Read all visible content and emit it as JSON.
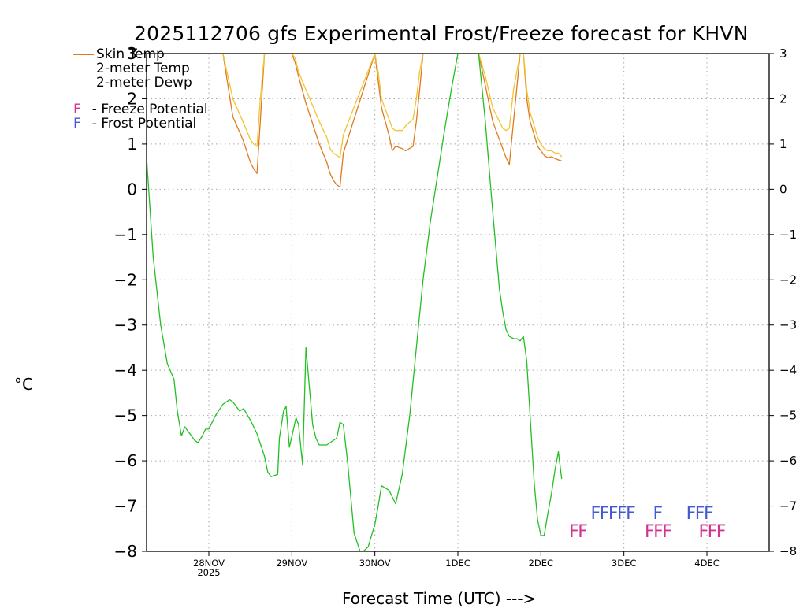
{
  "title": "2025112706 gfs Experimental Frost/Freeze forecast for KHVN",
  "units_label": "°C",
  "xlabel": "Forecast Time (UTC) --->",
  "legend": {
    "skin": "Skin Temp",
    "temp2m": "2-meter Temp",
    "dewp2m": "2-meter Dewp",
    "freeze_letter": "F",
    "freeze_text": "- Freeze Potential",
    "frost_letter": "F",
    "frost_text": "- Frost Potential"
  },
  "colors": {
    "skin": "#e07a1e",
    "temp2m": "#f2c431",
    "dewp2m": "#22c022",
    "freeze": "#d2338f",
    "frost": "#4457d4",
    "grid": "#a8a8a8"
  },
  "chart_data": {
    "type": "line",
    "title": "2025112706 gfs Experimental Frost/Freeze forecast for KHVN",
    "xlabel": "Forecast Time (UTC) --->",
    "ylabel": "°C",
    "x_unit": "days since 2025-11-27 06 UTC",
    "xlim": [
      0,
      7.5
    ],
    "ylim": [
      -8,
      3
    ],
    "yticks": [
      -8,
      -7,
      -6,
      -5,
      -4,
      -3,
      -2,
      -1,
      0,
      1,
      2,
      3
    ],
    "xticks": [
      {
        "x": 0.75,
        "label": "28NOV",
        "sub": "2025"
      },
      {
        "x": 1.75,
        "label": "29NOV",
        "sub": ""
      },
      {
        "x": 2.75,
        "label": "30NOV",
        "sub": ""
      },
      {
        "x": 3.75,
        "label": "1DEC",
        "sub": ""
      },
      {
        "x": 4.75,
        "label": "2DEC",
        "sub": ""
      },
      {
        "x": 5.75,
        "label": "3DEC",
        "sub": ""
      },
      {
        "x": 6.75,
        "label": "4DEC",
        "sub": ""
      }
    ],
    "grid": true,
    "series": [
      {
        "name": "Skin Temp",
        "color": "#e07a1e",
        "x": [
          0.92,
          1.04,
          1.16,
          1.25,
          1.29,
          1.33,
          1.37,
          1.42,
          1.75,
          1.79,
          1.83,
          1.92,
          2.0,
          2.08,
          2.17,
          2.21,
          2.25,
          2.29,
          2.33,
          2.37,
          2.75,
          2.79,
          2.83,
          2.92,
          2.96,
          3.0,
          3.08,
          3.12,
          3.21,
          3.25,
          3.29,
          3.33,
          3.38,
          4.0,
          4.08,
          4.17,
          4.25,
          4.29,
          4.33,
          4.37,
          4.42,
          4.5,
          4.54,
          4.58,
          4.62,
          4.67,
          4.71,
          4.75,
          4.79,
          4.83,
          4.88,
          4.92,
          4.96,
          5.0
        ],
        "y": [
          3,
          1.6,
          1.1,
          0.6,
          0.45,
          0.35,
          1.5,
          3,
          3,
          2.8,
          2.5,
          1.9,
          1.45,
          1.0,
          0.6,
          0.35,
          0.2,
          0.1,
          0.05,
          0.8,
          3,
          2.4,
          1.8,
          1.2,
          0.85,
          0.95,
          0.9,
          0.85,
          0.95,
          1.5,
          2.2,
          3,
          3,
          3,
          2.3,
          1.5,
          1.1,
          0.9,
          0.7,
          0.55,
          1.5,
          3,
          3,
          2.0,
          1.5,
          1.2,
          0.95,
          0.85,
          0.75,
          0.7,
          0.72,
          0.68,
          0.65,
          0.63
        ]
      },
      {
        "name": "2-meter Temp",
        "color": "#f2c431",
        "x": [
          0.92,
          1.04,
          1.16,
          1.25,
          1.29,
          1.33,
          1.37,
          1.42,
          1.75,
          1.79,
          1.83,
          1.92,
          2.0,
          2.08,
          2.17,
          2.21,
          2.25,
          2.29,
          2.33,
          2.37,
          2.75,
          2.79,
          2.83,
          2.92,
          2.96,
          3.0,
          3.08,
          3.12,
          3.21,
          3.25,
          3.29,
          3.33,
          3.38,
          4.0,
          4.08,
          4.17,
          4.25,
          4.29,
          4.33,
          4.37,
          4.42,
          4.5,
          4.54,
          4.58,
          4.62,
          4.67,
          4.71,
          4.75,
          4.79,
          4.83,
          4.88,
          4.92,
          4.96,
          5.0
        ],
        "y": [
          3,
          2.0,
          1.5,
          1.1,
          1.0,
          0.95,
          2.0,
          3,
          3,
          2.9,
          2.6,
          2.2,
          1.85,
          1.5,
          1.15,
          0.9,
          0.8,
          0.75,
          0.7,
          1.2,
          3,
          2.6,
          2.0,
          1.55,
          1.35,
          1.3,
          1.3,
          1.4,
          1.55,
          2.0,
          2.6,
          3,
          3,
          3,
          2.5,
          1.8,
          1.5,
          1.35,
          1.3,
          1.35,
          2.2,
          3,
          3,
          2.2,
          1.7,
          1.4,
          1.15,
          1.0,
          0.9,
          0.85,
          0.85,
          0.8,
          0.8,
          0.72
        ]
      },
      {
        "name": "2-meter Dewp",
        "color": "#22c022",
        "x": [
          0.0,
          0.08,
          0.17,
          0.25,
          0.33,
          0.37,
          0.42,
          0.46,
          0.5,
          0.58,
          0.62,
          0.67,
          0.71,
          0.75,
          0.83,
          0.92,
          1.0,
          1.04,
          1.12,
          1.17,
          1.25,
          1.33,
          1.42,
          1.46,
          1.5,
          1.58,
          1.6,
          1.65,
          1.68,
          1.72,
          1.77,
          1.8,
          1.83,
          1.88,
          1.92,
          2.0,
          2.04,
          2.08,
          2.12,
          2.17,
          2.29,
          2.33,
          2.37,
          2.42,
          2.46,
          2.5,
          2.58,
          2.67,
          2.75,
          2.79,
          2.83,
          2.92,
          3.0,
          3.08,
          3.17,
          3.25,
          3.33,
          3.42,
          3.5,
          3.58,
          3.67,
          3.75,
          3.83,
          3.92,
          4.0,
          4.08,
          4.17,
          4.25,
          4.29,
          4.33,
          4.37,
          4.42,
          4.46,
          4.5,
          4.54,
          4.58,
          4.62,
          4.67,
          4.71,
          4.75,
          4.79,
          4.83,
          4.88,
          4.92,
          4.96,
          5.0
        ],
        "y": [
          0.7,
          -1.5,
          -3.0,
          -3.85,
          -4.2,
          -4.9,
          -5.45,
          -5.25,
          -5.35,
          -5.55,
          -5.6,
          -5.45,
          -5.3,
          -5.3,
          -5.0,
          -4.75,
          -4.65,
          -4.7,
          -4.9,
          -4.85,
          -5.1,
          -5.4,
          -5.9,
          -6.25,
          -6.35,
          -6.3,
          -5.5,
          -4.9,
          -4.8,
          -5.7,
          -5.3,
          -5.05,
          -5.2,
          -6.1,
          -3.5,
          -5.2,
          -5.5,
          -5.65,
          -5.65,
          -5.65,
          -5.5,
          -5.15,
          -5.2,
          -6.0,
          -6.8,
          -7.6,
          -8.05,
          -7.9,
          -7.4,
          -7.0,
          -6.55,
          -6.65,
          -6.95,
          -6.3,
          -5.0,
          -3.5,
          -2.0,
          -0.7,
          0.25,
          1.2,
          2.2,
          3.0,
          3.0,
          3.0,
          3.0,
          1.5,
          -0.5,
          -2.2,
          -2.7,
          -3.1,
          -3.25,
          -3.3,
          -3.3,
          -3.35,
          -3.25,
          -3.8,
          -5.0,
          -6.5,
          -7.3,
          -7.65,
          -7.65,
          -7.2,
          -6.7,
          -6.2,
          -5.8,
          -6.4
        ]
      }
    ],
    "annotations": [
      {
        "text": "FF",
        "kind": "freeze",
        "x": 5.09,
        "y": -7.55
      },
      {
        "text": "FFFFF",
        "kind": "frost",
        "x": 5.35,
        "y": -7.15
      },
      {
        "text": "F",
        "kind": "frost",
        "x": 6.1,
        "y": -7.15
      },
      {
        "text": "FFF",
        "kind": "freeze",
        "x": 6.0,
        "y": -7.55
      },
      {
        "text": "FFF",
        "kind": "frost",
        "x": 6.5,
        "y": -7.15
      },
      {
        "text": "FFF",
        "kind": "freeze",
        "x": 6.65,
        "y": -7.55
      }
    ]
  }
}
